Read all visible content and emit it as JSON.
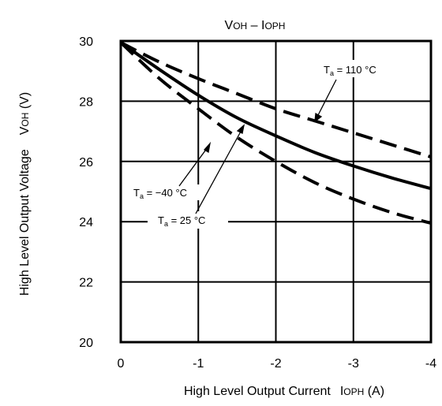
{
  "chart_data": {
    "type": "line",
    "title_main1": "V",
    "title_sub1": "OH",
    "title_mid": " – I",
    "title_sub2": "OPH",
    "xlabel_text": "High Level Output Current",
    "xlabel_sym": "I",
    "xlabel_sub": "OPH",
    "xlabel_unit": " (A)",
    "ylabel_text": "High Level Output Voltage",
    "ylabel_sym": "V",
    "ylabel_sub": "OH",
    "ylabel_unit": " (V)",
    "xlim": [
      0,
      -4
    ],
    "ylim": [
      20,
      30
    ],
    "x_ticks": [
      0,
      -1,
      -2,
      -3,
      -4
    ],
    "x_tick_labels": [
      "0",
      "-1",
      "-2",
      "-3",
      "-4"
    ],
    "y_ticks": [
      20,
      22,
      24,
      26,
      28,
      30
    ],
    "y_tick_labels": [
      "20",
      "22",
      "24",
      "26",
      "28",
      "30"
    ],
    "grid": true,
    "series": [
      {
        "name": "Ta = 110 °C",
        "style": "dashed",
        "x": [
          0,
          -0.5,
          -1,
          -1.5,
          -2,
          -2.5,
          -3,
          -3.5,
          -4
        ],
        "y": [
          29.95,
          29.3,
          28.75,
          28.25,
          27.75,
          27.35,
          26.95,
          26.55,
          26.15
        ]
      },
      {
        "name": "Ta = 25 °C",
        "style": "solid",
        "x": [
          0,
          -0.5,
          -1,
          -1.5,
          -2,
          -2.5,
          -3,
          -3.5,
          -4
        ],
        "y": [
          29.95,
          29.05,
          28.2,
          27.45,
          26.85,
          26.3,
          25.85,
          25.45,
          25.1
        ]
      },
      {
        "name": "Ta = -40 °C",
        "style": "dashed",
        "x": [
          0,
          -0.5,
          -1,
          -1.5,
          -2,
          -2.5,
          -3,
          -3.5,
          -4
        ],
        "y": [
          29.95,
          28.75,
          27.75,
          26.8,
          26.0,
          25.3,
          24.75,
          24.3,
          23.95
        ]
      }
    ],
    "annotations": [
      {
        "T": "T",
        "sub": "a",
        "rest": " = 110 °C"
      },
      {
        "T": "T",
        "sub": "a",
        "rest": " = −40 °C"
      },
      {
        "T": "T",
        "sub": "a",
        "rest": " = 25 °C"
      }
    ]
  }
}
